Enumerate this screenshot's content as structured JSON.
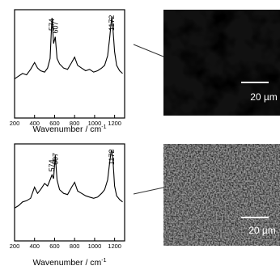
{
  "chart_data": [
    {
      "type": "line",
      "xlabel": "Wavenumber / cm",
      "xlabel_sup": "-1",
      "xlim": [
        200,
        1300
      ],
      "xticks": [
        200,
        400,
        600,
        800,
        1000,
        1200
      ],
      "peak_labels": [
        {
          "x": 574,
          "text": "574"
        },
        {
          "x": 607,
          "text": "607"
        },
        {
          "x": 1172,
          "text": "1172"
        }
      ],
      "series": [
        {
          "x": [
            200,
            240,
            280,
            320,
            360,
            400,
            430,
            460,
            500,
            530,
            555,
            574,
            590,
            607,
            625,
            650,
            690,
            730,
            770,
            800,
            830,
            870,
            910,
            950,
            990,
            1030,
            1070,
            1100,
            1130,
            1150,
            1165,
            1172,
            1185,
            1200,
            1220,
            1250,
            1280
          ],
          "y": [
            0.1,
            0.14,
            0.18,
            0.16,
            0.24,
            0.34,
            0.26,
            0.22,
            0.2,
            0.26,
            0.4,
            1.0,
            0.62,
            0.72,
            0.4,
            0.32,
            0.26,
            0.24,
            0.34,
            0.42,
            0.3,
            0.26,
            0.22,
            0.24,
            0.2,
            0.22,
            0.26,
            0.3,
            0.44,
            0.7,
            0.92,
            1.02,
            0.8,
            0.5,
            0.3,
            0.22,
            0.18
          ]
        }
      ],
      "pointer_to": "image-1"
    },
    {
      "type": "line",
      "xlabel": "Wavenumber / cm",
      "xlabel_sup": "-1",
      "xlim": [
        200,
        1300
      ],
      "xticks": [
        200,
        400,
        600,
        800,
        1000,
        1200
      ],
      "peak_labels": [
        {
          "x": 574,
          "text": "574"
        },
        {
          "x": 607,
          "text": "607"
        },
        {
          "x": 1172,
          "text": "1172"
        }
      ],
      "series": [
        {
          "x": [
            200,
            240,
            280,
            320,
            360,
            400,
            430,
            460,
            500,
            530,
            555,
            574,
            590,
            607,
            625,
            650,
            690,
            730,
            770,
            800,
            830,
            870,
            910,
            950,
            990,
            1030,
            1070,
            1100,
            1130,
            1150,
            1165,
            1172,
            1185,
            1200,
            1220,
            1250,
            1280
          ],
          "y": [
            0.06,
            0.1,
            0.16,
            0.18,
            0.22,
            0.4,
            0.3,
            0.36,
            0.46,
            0.42,
            0.52,
            0.6,
            0.54,
            0.92,
            0.52,
            0.36,
            0.3,
            0.28,
            0.4,
            0.48,
            0.34,
            0.3,
            0.26,
            0.24,
            0.22,
            0.24,
            0.3,
            0.36,
            0.52,
            0.8,
            0.98,
            1.0,
            0.8,
            0.42,
            0.26,
            0.2,
            0.16
          ]
        }
      ],
      "pointer_to": "image-2"
    }
  ],
  "images": [
    {
      "scale_label": "20 µm"
    },
    {
      "scale_label": "20 µm"
    }
  ]
}
